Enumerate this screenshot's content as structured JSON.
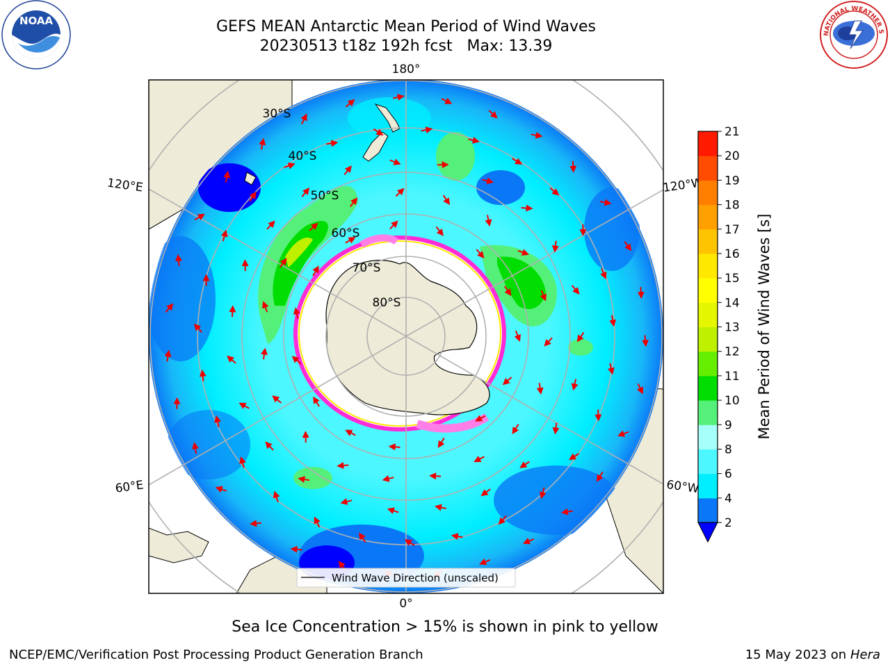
{
  "title": {
    "line1": "GEFS MEAN Antarctic Mean Period of Wind Waves",
    "line2": "20230513 t18z 192h fcst   Max: 13.39"
  },
  "map": {
    "projection": "south polar stereographic",
    "longitude_labels": [
      "180°",
      "120°E",
      "120°W",
      "60°E",
      "60°W",
      "0°"
    ],
    "latitude_labels": [
      "30°S",
      "40°S",
      "50°S",
      "60°S",
      "70°S",
      "80°S"
    ],
    "legend": "Wind Wave Direction (unscaled)",
    "ice_note": "Sea Ice Concentration > 15% is shown in pink to yellow",
    "colors": {
      "land": "#eeecd8",
      "ice": "#ffffff",
      "wave_2_4": "#0a78f6",
      "wave_4_6": "#00eeff",
      "wave_6_8": "#4df7ff",
      "wave_8_9": "#a6fff8",
      "wave_9_10": "#55f07a",
      "wave_10_11": "#00dd00",
      "wave_12_13": "#bff000",
      "arrow": "#ee0000",
      "ice_edge": "#ff2bd6"
    }
  },
  "colorbar": {
    "title": "Mean Period of Wind Waves [s]",
    "ticks": [
      "2",
      "4",
      "6",
      "8",
      "9",
      "10",
      "11",
      "12",
      "13",
      "14",
      "15",
      "16",
      "17",
      "18",
      "19",
      "20",
      "21"
    ],
    "colors": [
      "#0a78f6",
      "#00eeff",
      "#4df7ff",
      "#a6fff8",
      "#55f07a",
      "#00dd00",
      "#66ee00",
      "#bff000",
      "#e4f700",
      "#ffff00",
      "#ffe800",
      "#ffc400",
      "#ffa000",
      "#ff7e00",
      "#ff4c00",
      "#ff1a00"
    ],
    "under_color": "#0000ff"
  },
  "logos": {
    "left": "NOAA",
    "right": "NATIONAL WEATHER SERVICE"
  },
  "footer": {
    "left": "NCEP/EMC/Verification Post Processing Product Generation Branch",
    "right_date": "15 May 2023 on",
    "right_host": "Hera"
  }
}
